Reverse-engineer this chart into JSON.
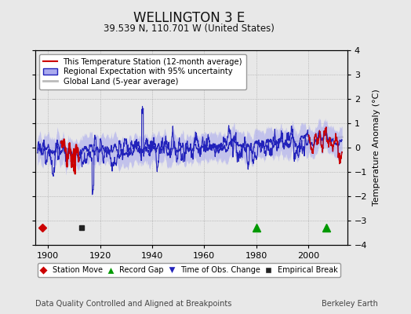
{
  "title": "WELLINGTON 3 E",
  "subtitle": "39.539 N, 110.701 W (United States)",
  "ylabel": "Temperature Anomaly (°C)",
  "xlabel_footer": "Data Quality Controlled and Aligned at Breakpoints",
  "footer_right": "Berkeley Earth",
  "ylim": [
    -4,
    4
  ],
  "xlim": [
    1895,
    2015
  ],
  "yticks": [
    -4,
    -3,
    -2,
    -1,
    0,
    1,
    2,
    3,
    4
  ],
  "xticks": [
    1900,
    1920,
    1940,
    1960,
    1980,
    2000
  ],
  "background_color": "#e8e8e8",
  "plot_bg_color": "#e8e8e8",
  "station_color": "#cc0000",
  "regional_color": "#2222bb",
  "regional_band_color": "#aaaaee",
  "global_color": "#bbbbbb",
  "legend_labels": [
    "This Temperature Station (12-month average)",
    "Regional Expectation with 95% uncertainty",
    "Global Land (5-year average)"
  ],
  "station_move_x": 1898,
  "empirical_break_x": 1913,
  "record_gap_x1": 1980,
  "record_gap_x2": 2007,
  "seed": 42
}
